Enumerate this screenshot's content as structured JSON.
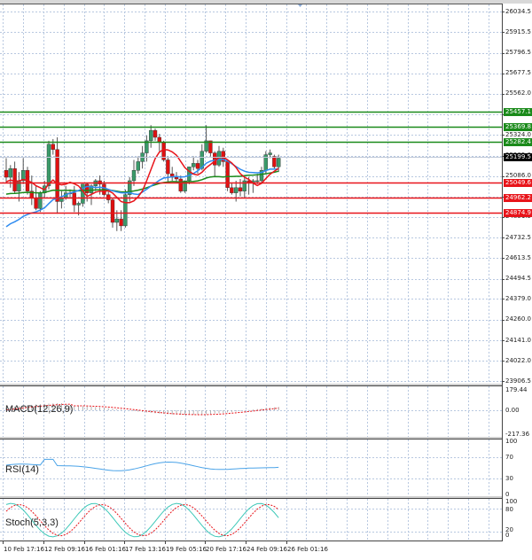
{
  "chart_data": {
    "type": "candlestick",
    "title": "",
    "price_axis": {
      "ticks": [
        "26034.5",
        "25915.5",
        "25796.5",
        "25677.5",
        "25562.0",
        "25443.0",
        "25324.0",
        "25205.0",
        "25086.0",
        "24967.0",
        "24851.5",
        "24732.5",
        "24613.5",
        "24494.5",
        "24379.0",
        "24260.0",
        "24141.0",
        "24022.0",
        "23906.5"
      ],
      "max": 26034.5,
      "min": 23906.5
    },
    "x_axis_labels": [
      "10 Feb 17:16",
      "12 Feb 09:16",
      "16 Feb 01:16",
      "17 Feb 13:16",
      "19 Feb 05:16",
      "20 Feb 17:16",
      "24 Feb 09:16",
      "26 Feb 01:16"
    ],
    "levels": [
      {
        "value": "25457.1",
        "color": "#1a8a1a",
        "kind": "resistance"
      },
      {
        "value": "25369.8",
        "color": "#1a8a1a",
        "kind": "resistance"
      },
      {
        "value": "25282.4",
        "color": "#1a8a1a",
        "kind": "resistance"
      },
      {
        "value": "25049.6",
        "color": "#e8141a",
        "kind": "support"
      },
      {
        "value": "24962.2",
        "color": "#e8141a",
        "kind": "support"
      },
      {
        "value": "24874.9",
        "color": "#e8141a",
        "kind": "support"
      }
    ],
    "current_price": {
      "value": "25199.5",
      "color": "#000000"
    },
    "candles": [
      [
        25120,
        25190,
        25050,
        25080
      ],
      [
        25080,
        25150,
        25020,
        25130
      ],
      [
        25130,
        25170,
        24990,
        25000
      ],
      [
        25000,
        25110,
        24940,
        25060
      ],
      [
        25060,
        25190,
        25040,
        25120
      ],
      [
        25120,
        25140,
        24980,
        25000
      ],
      [
        25000,
        25090,
        24920,
        24960
      ],
      [
        24960,
        25030,
        24890,
        24900
      ],
      [
        24900,
        25000,
        24880,
        24990
      ],
      [
        24990,
        25060,
        24960,
        25030
      ],
      [
        25030,
        25290,
        25010,
        25270
      ],
      [
        25270,
        25300,
        25210,
        25240
      ],
      [
        25240,
        25310,
        24870,
        24940
      ],
      [
        24940,
        25000,
        24900,
        24960
      ],
      [
        24960,
        25030,
        24950,
        24990
      ],
      [
        24990,
        25010,
        24960,
        24990
      ],
      [
        24990,
        25030,
        24880,
        24920
      ],
      [
        24920,
        24940,
        24860,
        24930
      ],
      [
        24930,
        25040,
        24910,
        25040
      ],
      [
        25040,
        25050,
        24940,
        24990
      ],
      [
        24990,
        25040,
        24920,
        25030
      ],
      [
        25030,
        25070,
        25000,
        25060
      ],
      [
        25060,
        25090,
        24980,
        25040
      ],
      [
        25040,
        25060,
        24970,
        24980
      ],
      [
        24980,
        25000,
        24930,
        24950
      ],
      [
        24950,
        24960,
        24790,
        24820
      ],
      [
        24820,
        24890,
        24770,
        24840
      ],
      [
        24840,
        24890,
        24770,
        24800
      ],
      [
        24800,
        25010,
        24790,
        24980
      ],
      [
        24980,
        25080,
        24940,
        25060
      ],
      [
        25060,
        25180,
        25030,
        25120
      ],
      [
        25120,
        25200,
        25100,
        25170
      ],
      [
        25170,
        25260,
        25130,
        25220
      ],
      [
        25220,
        25320,
        25170,
        25290
      ],
      [
        25290,
        25380,
        25250,
        25350
      ],
      [
        25350,
        25360,
        25290,
        25310
      ],
      [
        25310,
        25330,
        25230,
        25280
      ],
      [
        25280,
        25290,
        25170,
        25180
      ],
      [
        25180,
        25200,
        25050,
        25100
      ],
      [
        25100,
        25140,
        25060,
        25080
      ],
      [
        25080,
        25110,
        25050,
        25070
      ],
      [
        25070,
        25090,
        24990,
        25000
      ],
      [
        25000,
        25060,
        24990,
        25060
      ],
      [
        25060,
        25110,
        25040,
        25140
      ],
      [
        25140,
        25200,
        25120,
        25160
      ],
      [
        25160,
        25180,
        25100,
        25130
      ],
      [
        25130,
        25270,
        25120,
        25230
      ],
      [
        25230,
        25380,
        25220,
        25290
      ],
      [
        25290,
        25290,
        25200,
        25220
      ],
      [
        25220,
        25230,
        25080,
        25150
      ],
      [
        25150,
        25260,
        25140,
        25230
      ],
      [
        25230,
        25250,
        25140,
        25170
      ],
      [
        25170,
        25180,
        25000,
        25020
      ],
      [
        25020,
        25050,
        24980,
        24990
      ],
      [
        24990,
        25060,
        24940,
        25020
      ],
      [
        25020,
        25070,
        24970,
        25000
      ],
      [
        25000,
        25080,
        24960,
        25060
      ],
      [
        25060,
        25080,
        24980,
        25050
      ],
      [
        25050,
        25070,
        24990,
        25060
      ],
      [
        25060,
        25100,
        25040,
        25060
      ],
      [
        25060,
        25140,
        25050,
        25120
      ],
      [
        25120,
        25230,
        25100,
        25210
      ],
      [
        25210,
        25240,
        25190,
        25220
      ],
      [
        25200,
        25210,
        25130,
        25140
      ],
      [
        25140,
        25210,
        25110,
        25190
      ]
    ],
    "moving_averages": [
      {
        "name": "MA fast",
        "color": "#e8141a"
      },
      {
        "name": "MA medium",
        "color": "#2e8bf0"
      },
      {
        "name": "MA slow",
        "color": "#1a8a1a"
      }
    ],
    "indicators": [
      {
        "name": "MACD(12,26,9)",
        "ticks": [
          "179.44",
          "0.00",
          "-217.36"
        ],
        "histogram_color": "#a0a0a0",
        "signal_color": "#e8141a"
      },
      {
        "name": "RSI(14)",
        "ticks": [
          "100",
          "70",
          "30",
          "0"
        ],
        "line_color": "#4aa3e8"
      },
      {
        "name": "Stoch(5,3,3)",
        "ticks": [
          "100",
          "80",
          "20",
          "0"
        ],
        "main_color": "#3cc8b8",
        "signal_color": "#e8141a"
      }
    ]
  },
  "panes": {
    "macd_title": "MACD(12,26,9)",
    "rsi_title": "RSI(14)",
    "stoch_title": "Stoch(5,3,3)"
  },
  "axis": {
    "macd": [
      "179.44",
      "0.00",
      "-217.36"
    ],
    "rsi": [
      "100",
      "70",
      "30",
      "0"
    ],
    "stoch": [
      "100",
      "80",
      "20",
      "0"
    ]
  }
}
